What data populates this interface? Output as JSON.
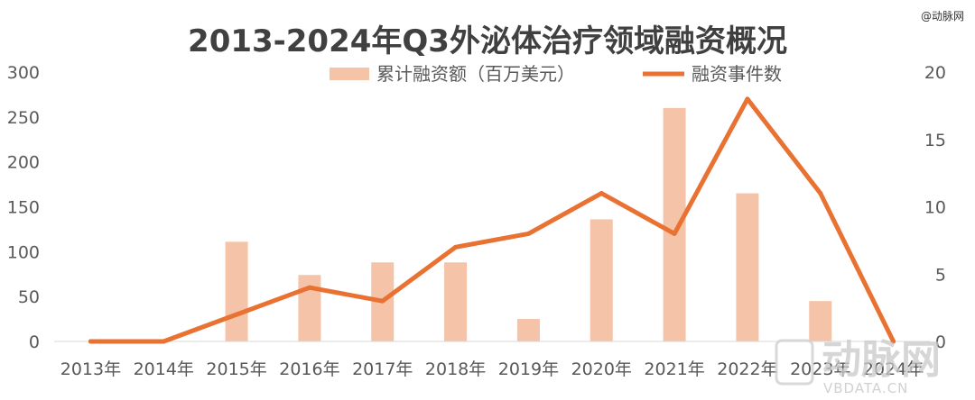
{
  "watermark": {
    "top_label": "@动脉网",
    "brand_text": "动脉网",
    "url": "VBDATA.CN"
  },
  "chart_data": {
    "type": "bar",
    "title": "2013-2024年Q3外泌体治疗领域融资概况",
    "categories": [
      "2013年",
      "2014年",
      "2015年",
      "2016年",
      "2017年",
      "2018年",
      "2019年",
      "2020年",
      "2021年",
      "2022年",
      "2023年",
      "2024年"
    ],
    "series": [
      {
        "name": "累计融资额（百万美元）",
        "type": "bar",
        "axis": "left",
        "color": "#f4c3a8",
        "values": [
          0,
          0,
          111,
          74,
          88,
          88,
          25,
          136,
          260,
          165,
          45,
          0
        ]
      },
      {
        "name": "融资事件数",
        "type": "line",
        "axis": "right",
        "color": "#e97132",
        "values": [
          0,
          0,
          2,
          4,
          3,
          7,
          8,
          11,
          8,
          18,
          11,
          0
        ]
      }
    ],
    "left_axis": {
      "ylim": [
        0,
        300
      ],
      "ticks": [
        0,
        50,
        100,
        150,
        200,
        250,
        300
      ]
    },
    "right_axis": {
      "ylim": [
        0,
        20
      ],
      "ticks": [
        0,
        5,
        10,
        15,
        20
      ]
    },
    "grid": false,
    "legend_position": "top"
  }
}
